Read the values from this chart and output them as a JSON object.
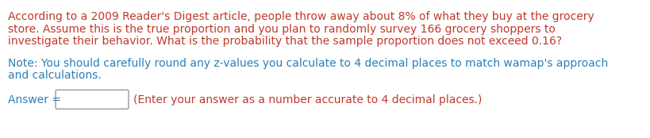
{
  "bg_color": "#ffffff",
  "main_text_color": "#c0392b",
  "note_text_color": "#2980b9",
  "answer_label_color": "#2980b9",
  "answer_suffix_color": "#c0392b",
  "main_text_line1": "According to a 2009 Reader's Digest article, people throw away about 8% of what they buy at the grocery",
  "main_text_line2": "store. Assume this is the true proportion and you plan to randomly survey 166 grocery shoppers to",
  "main_text_line3": "investigate their behavior. What is the probability that the sample proportion does not exceed 0.16?",
  "note_text_line1": "Note: You should carefully round any z-values you calculate to 4 decimal places to match wamap's approach",
  "note_text_line2": "and calculations.",
  "answer_label": "Answer = ",
  "answer_suffix": "(Enter your answer as a number accurate to 4 decimal places.)",
  "main_fontsize": 10.0,
  "note_fontsize": 10.0,
  "answer_fontsize": 10.0,
  "fig_width": 8.19,
  "fig_height": 1.74,
  "dpi": 100
}
